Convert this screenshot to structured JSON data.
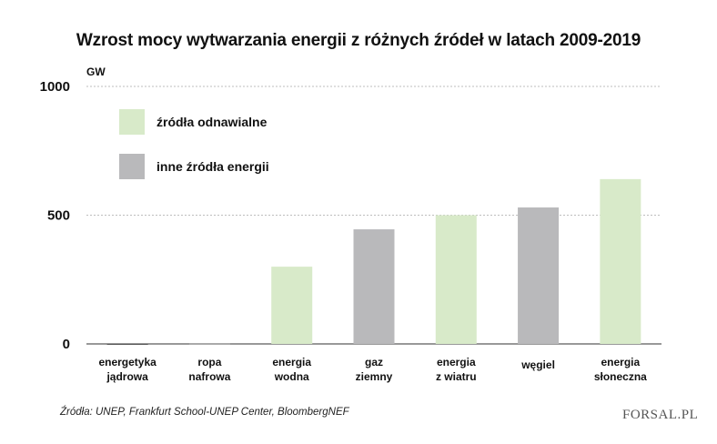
{
  "chart_data": {
    "type": "bar",
    "title": "Wzrost mocy wytwarzania energii z różnych źródeł w latach 2009-2019",
    "unit": "GW",
    "ylim": [
      0,
      1000
    ],
    "yticks": [
      "0",
      "500",
      "1000"
    ],
    "grid": true,
    "categories": [
      [
        "energetyka",
        "jądrowa"
      ],
      [
        "ropa",
        "nafrowa"
      ],
      [
        "energia",
        "wodna"
      ],
      [
        "gaz",
        "ziemny"
      ],
      [
        "energia",
        "z wiatru"
      ],
      [
        "węgiel"
      ],
      [
        "energia",
        "słoneczna"
      ]
    ],
    "values": [
      -2,
      0,
      300,
      445,
      500,
      530,
      640
    ],
    "groups": [
      "other",
      "other",
      "renewable",
      "other",
      "renewable",
      "other",
      "renewable"
    ],
    "legend": [
      {
        "key": "renewable",
        "label": "źródła odnawialne",
        "color": "#d8eac9"
      },
      {
        "key": "other",
        "label": "inne źródła energii",
        "color": "#b9b9bb"
      }
    ],
    "legend_position": "top-left"
  },
  "source": "Źródła: UNEP, Frankfurt School-UNEP Center, BloombergNEF",
  "brand": "FORSAL.PL"
}
